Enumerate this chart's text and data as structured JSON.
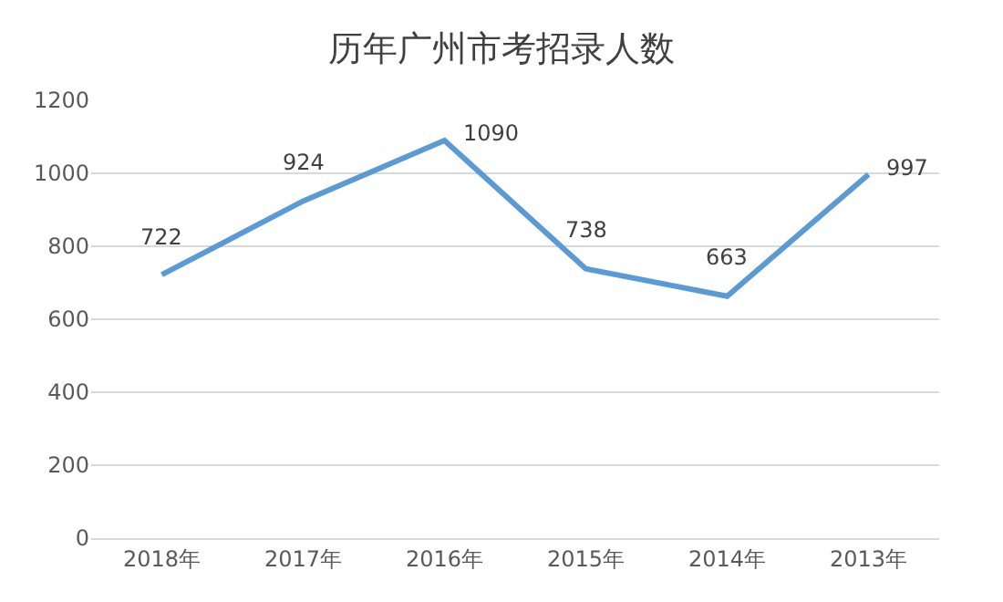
{
  "chart_data": {
    "type": "line",
    "title": "历年广州市考招录人数",
    "categories": [
      "2018年",
      "2017年",
      "2016年",
      "2015年",
      "2014年",
      "2013年"
    ],
    "series": [
      {
        "color": "#5b9bd5",
        "values": [
          722,
          924,
          1090,
          738,
          663,
          997
        ]
      }
    ],
    "ylim": [
      0,
      1200
    ],
    "yticks": [
      0,
      200,
      400,
      600,
      800,
      1000,
      1200
    ],
    "grid": "y",
    "marker": "none",
    "line_style": "solid",
    "data_labels": true
  }
}
